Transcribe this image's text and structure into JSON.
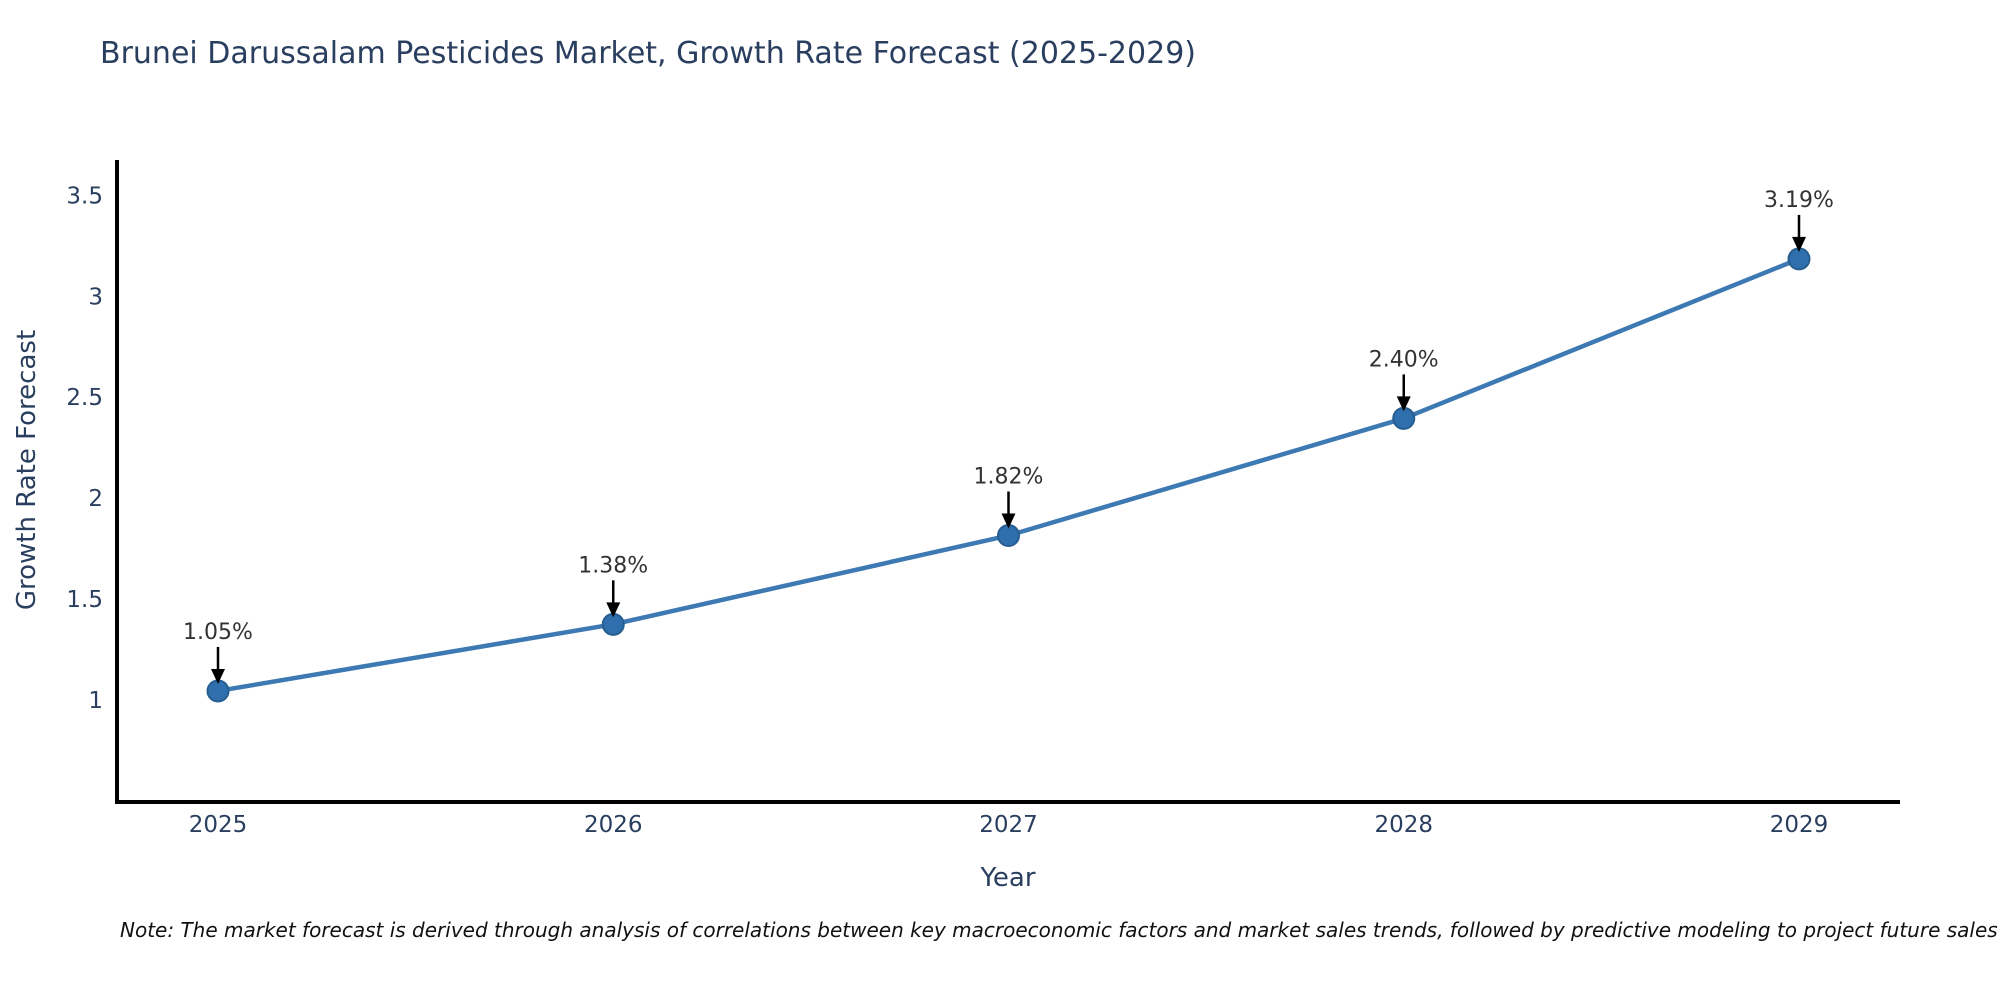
{
  "page": {
    "background": "#ffffff"
  },
  "chart_data": {
    "type": "line",
    "title": "Brunei Darussalam Pesticides Market, Growth Rate Forecast (2025-2029)",
    "xlabel": "Year",
    "ylabel": "Growth Rate Forecast",
    "categories": [
      "2025",
      "2026",
      "2027",
      "2028",
      "2029"
    ],
    "series": [
      {
        "name": "Growth Rate Forecast",
        "values": [
          1.05,
          1.38,
          1.82,
          2.4,
          3.19
        ]
      }
    ],
    "point_labels": [
      "1.05%",
      "1.38%",
      "1.82%",
      "2.40%",
      "3.19%"
    ],
    "y_ticks": [
      "1",
      "1.5",
      "2",
      "2.5",
      "3",
      "3.5"
    ],
    "y_tick_values": [
      1,
      1.5,
      2,
      2.5,
      3,
      3.5
    ],
    "ylim": [
      0.5,
      3.68
    ],
    "grid": false,
    "legend_position": "none",
    "marker_style": "circle",
    "annotation_arrows": true,
    "colors": {
      "line": "#3d79b2",
      "marker": "#2f6fad",
      "marker_edge": "#275e91",
      "axis": "#000000",
      "tick_text": "#2a3f5f",
      "title_text": "#2a3f5f",
      "annotation_text": "#333333",
      "arrow": "#000000"
    }
  },
  "note": {
    "text": "Note: The market forecast is derived through analysis of correlations between key macroeconomic factors and market sales trends, followed by predictive modeling to project future sales"
  }
}
